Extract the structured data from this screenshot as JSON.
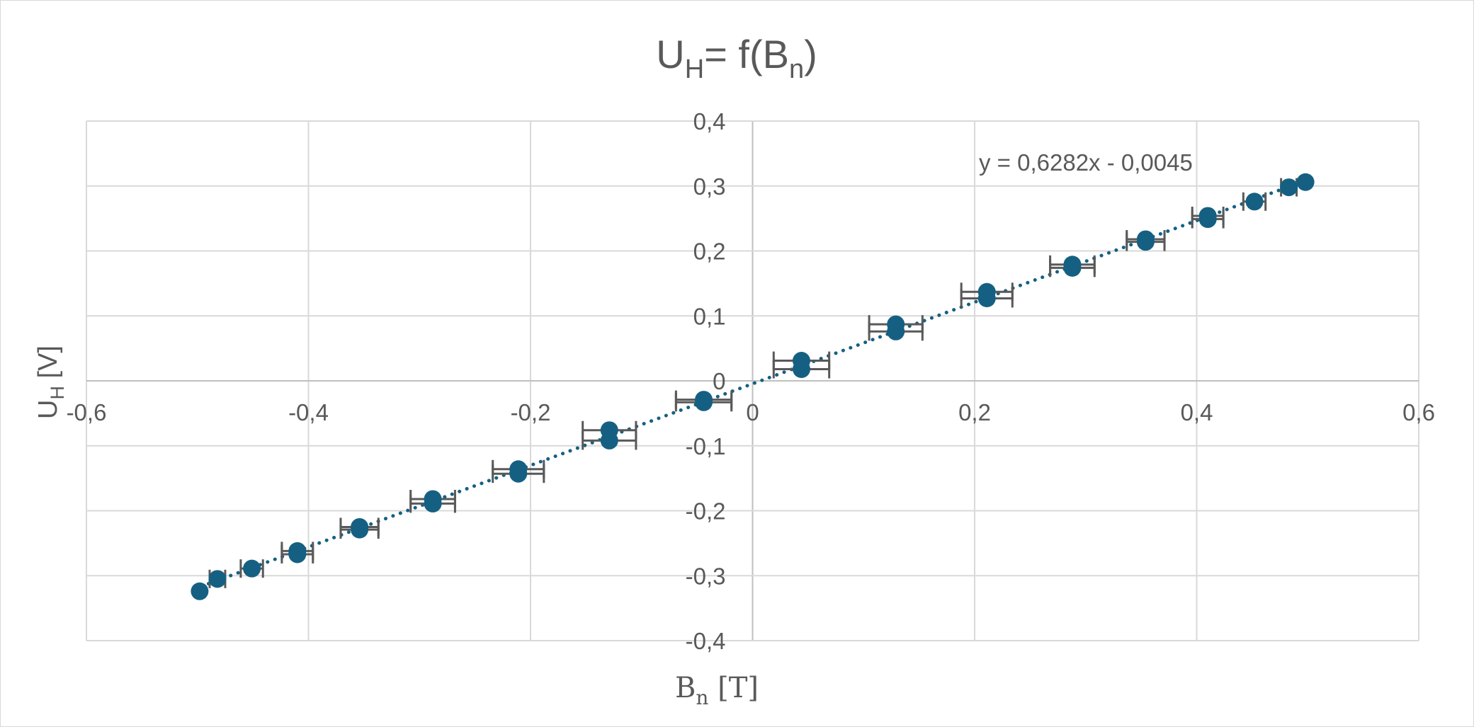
{
  "chart_data": {
    "type": "scatter",
    "title": {
      "main": "U",
      "sub": "H",
      "rest": "= f(B",
      "sub2": "n",
      "end": ")"
    },
    "xlabel": {
      "main": "B",
      "sub": "n",
      "rest": " [T]"
    },
    "ylabel": {
      "main": "U",
      "sub": "H",
      "rest": " [V]"
    },
    "xlim": [
      -0.6,
      0.6
    ],
    "ylim": [
      -0.4,
      0.4
    ],
    "x_ticks": [
      -0.6,
      -0.4,
      -0.2,
      0,
      0.2,
      0.4,
      0.6
    ],
    "y_ticks": [
      -0.4,
      -0.3,
      -0.2,
      -0.1,
      0,
      0.1,
      0.2,
      0.3,
      0.4
    ],
    "x_tick_labels": [
      "-0,6",
      "-0,4",
      "-0,2",
      "0",
      "0,2",
      "0,4",
      "0,6"
    ],
    "y_tick_labels": [
      "-0,4",
      "-0,3",
      "-0,2",
      "-0,1",
      "0",
      "0,1",
      "0,2",
      "0,3",
      "0,4"
    ],
    "grid": true,
    "marker_color": "#156082",
    "errorbar_color": "#595959",
    "trendline": {
      "type": "linear",
      "slope": 0.6282,
      "intercept": -0.0045,
      "style": "dotted",
      "color": "#156082",
      "equation_label": "y = 0,6282x - 0,0045",
      "x_range": [
        -0.49,
        0.49
      ]
    },
    "points": [
      {
        "x": -0.498,
        "y": -0.324,
        "xerr": 0
      },
      {
        "x": -0.482,
        "y": -0.305,
        "xerr": 0.007
      },
      {
        "x": -0.451,
        "y": -0.289,
        "xerr": 0.01
      },
      {
        "x": -0.41,
        "y": -0.262,
        "xerr": 0.014
      },
      {
        "x": -0.41,
        "y": -0.267,
        "xerr": 0.014
      },
      {
        "x": -0.354,
        "y": -0.225,
        "xerr": 0.017
      },
      {
        "x": -0.354,
        "y": -0.229,
        "xerr": 0.017
      },
      {
        "x": -0.288,
        "y": -0.182,
        "xerr": 0.02
      },
      {
        "x": -0.288,
        "y": -0.189,
        "xerr": 0.02
      },
      {
        "x": -0.211,
        "y": -0.136,
        "xerr": 0.023
      },
      {
        "x": -0.211,
        "y": -0.143,
        "xerr": 0.023
      },
      {
        "x": -0.129,
        "y": -0.076,
        "xerr": 0.024
      },
      {
        "x": -0.129,
        "y": -0.092,
        "xerr": 0.024
      },
      {
        "x": -0.044,
        "y": -0.029,
        "xerr": 0.025
      },
      {
        "x": -0.044,
        "y": -0.033,
        "xerr": 0.025
      },
      {
        "x": 0.044,
        "y": 0.031,
        "xerr": 0.025
      },
      {
        "x": 0.044,
        "y": 0.018,
        "xerr": 0.025
      },
      {
        "x": 0.129,
        "y": 0.087,
        "xerr": 0.024
      },
      {
        "x": 0.129,
        "y": 0.076,
        "xerr": 0.024
      },
      {
        "x": 0.211,
        "y": 0.137,
        "xerr": 0.023
      },
      {
        "x": 0.211,
        "y": 0.127,
        "xerr": 0.023
      },
      {
        "x": 0.288,
        "y": 0.179,
        "xerr": 0.02
      },
      {
        "x": 0.288,
        "y": 0.174,
        "xerr": 0.02
      },
      {
        "x": 0.354,
        "y": 0.218,
        "xerr": 0.017
      },
      {
        "x": 0.354,
        "y": 0.214,
        "xerr": 0.017
      },
      {
        "x": 0.41,
        "y": 0.254,
        "xerr": 0.014
      },
      {
        "x": 0.41,
        "y": 0.249,
        "xerr": 0.014
      },
      {
        "x": 0.452,
        "y": 0.276,
        "xerr": 0.01
      },
      {
        "x": 0.483,
        "y": 0.298,
        "xerr": 0.007
      },
      {
        "x": 0.498,
        "y": 0.306,
        "xerr": 0
      }
    ]
  }
}
